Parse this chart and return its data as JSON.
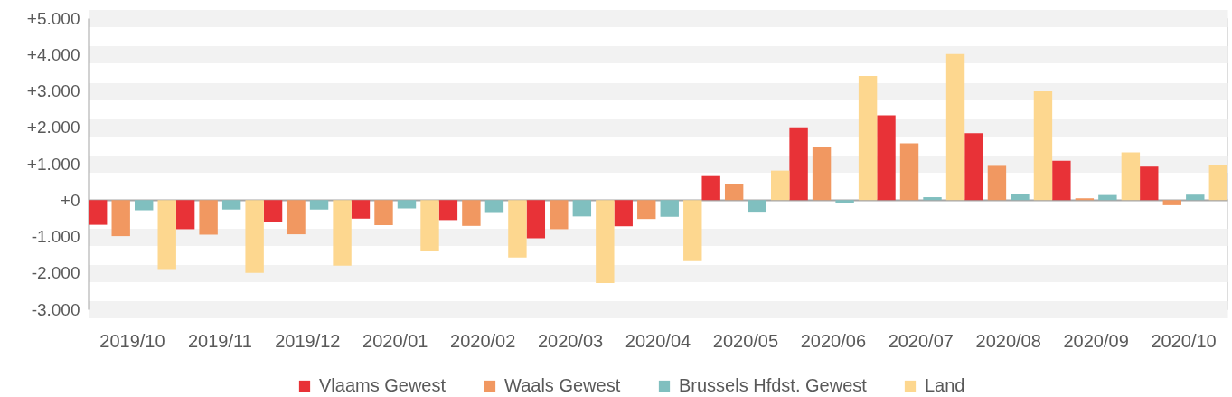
{
  "chart_data": {
    "type": "bar",
    "categories": [
      "2019/10",
      "2019/11",
      "2019/12",
      "2020/01",
      "2020/02",
      "2020/03",
      "2020/04",
      "2020/05",
      "2020/06",
      "2020/07",
      "2020/08",
      "2020/09",
      "2020/10"
    ],
    "series": [
      {
        "name": "Vlaams Gewest",
        "color": "#e83237",
        "values": [
          -680,
          -800,
          -610,
          -510,
          -550,
          -1050,
          -720,
          660,
          2000,
          2330,
          1840,
          1080,
          920
        ]
      },
      {
        "name": "Waals Gewest",
        "color": "#f19861",
        "values": [
          -990,
          -950,
          -940,
          -690,
          -710,
          -800,
          -520,
          440,
          1460,
          1560,
          940,
          50,
          -140
        ]
      },
      {
        "name": "Brussels Hfdst. Gewest",
        "color": "#80bfbf",
        "values": [
          -280,
          -260,
          -260,
          -230,
          -330,
          -450,
          -460,
          -320,
          -80,
          80,
          180,
          140,
          150
        ]
      },
      {
        "name": "Land",
        "color": "#fdd78f",
        "values": [
          -1920,
          -2000,
          -1800,
          -1410,
          -1580,
          -2280,
          -1680,
          810,
          3410,
          4010,
          2990,
          1310,
          970
        ]
      }
    ],
    "ylim": [
      -3000,
      5000
    ],
    "yticks": [
      {
        "value": -3000,
        "label": "-3.000"
      },
      {
        "value": -2000,
        "label": "-2.000"
      },
      {
        "value": -1000,
        "label": "-1.000"
      },
      {
        "value": 0,
        "label": "+0"
      },
      {
        "value": 1000,
        "label": "+1.000"
      },
      {
        "value": 2000,
        "label": "+2.000"
      },
      {
        "value": 3000,
        "label": "+3.000"
      },
      {
        "value": 4000,
        "label": "+4.000"
      },
      {
        "value": 5000,
        "label": "+5.000"
      }
    ],
    "grid": "y",
    "legend": "bottom"
  }
}
